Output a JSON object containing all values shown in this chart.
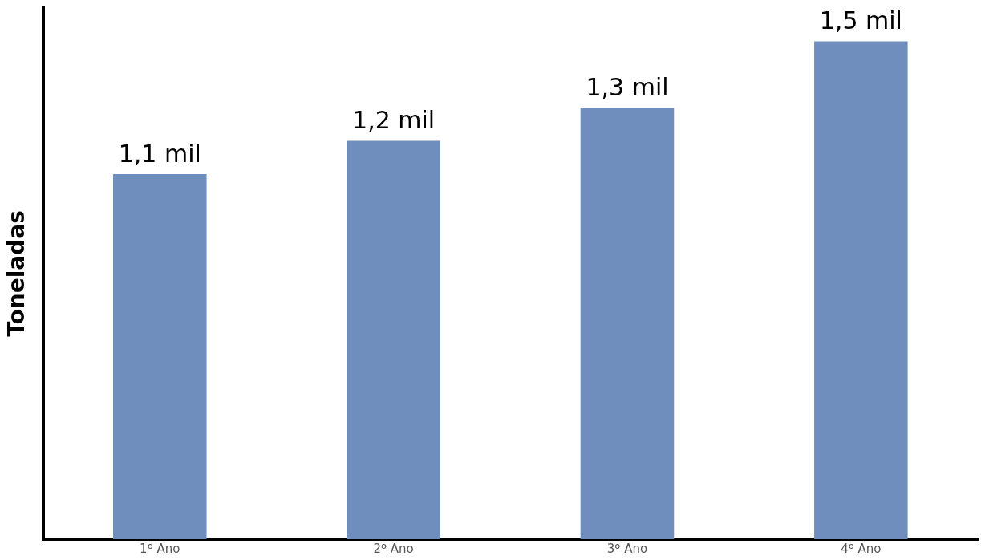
{
  "chart_data": {
    "type": "bar",
    "ylabel": "Toneladas",
    "categories": [
      "1º Ano",
      "2º Ano",
      "3º Ano",
      "4º Ano"
    ],
    "values": [
      1.1,
      1.2,
      1.3,
      1.5
    ],
    "value_labels": [
      "1,1 mil",
      "1,2 mil",
      "1,3 mil",
      "1,5 mil"
    ],
    "color": "#6f8ebe",
    "ylim": [
      0,
      1.6
    ],
    "tick_labels": "x",
    "grid": false,
    "legend": false
  }
}
